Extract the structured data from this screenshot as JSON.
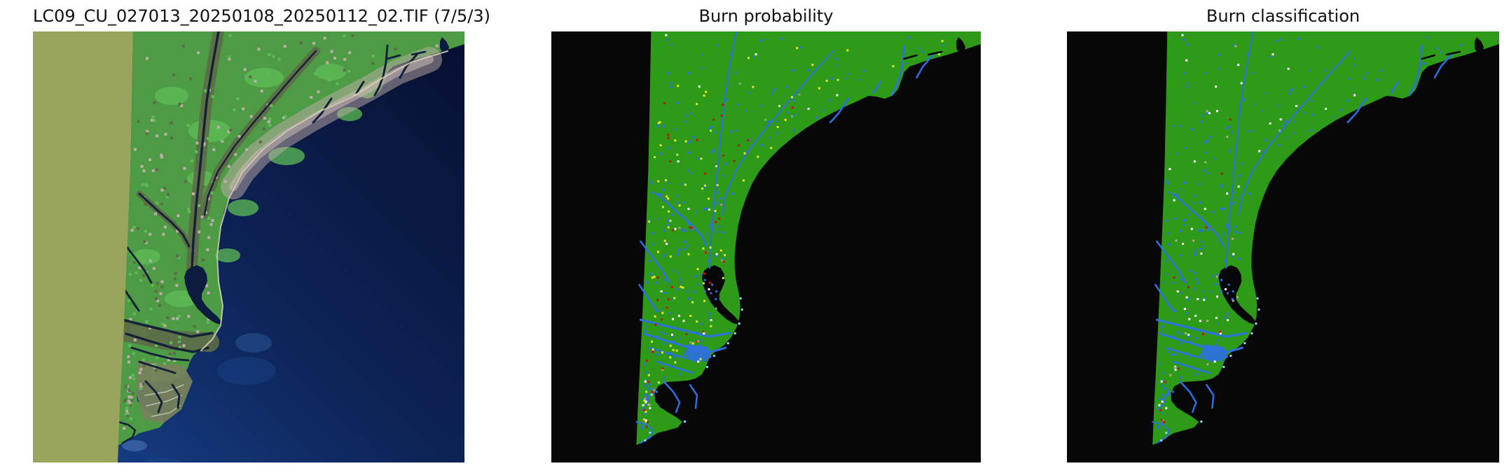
{
  "figure": {
    "background": "#ffffff",
    "panels": [
      {
        "id": "satellite",
        "title": "LC09_CU_027013_20250108_20250112_02.TIF (7/5/3)",
        "type": "satellite-false-color"
      },
      {
        "id": "probability",
        "title": "Burn probability",
        "type": "classified-raster"
      },
      {
        "id": "classification",
        "title": "Burn classification",
        "type": "classified-raster"
      }
    ]
  },
  "colors": {
    "figure_background": "#ffffff",
    "title_text": "#111111",
    "nodata_khaki": "#99a45c",
    "ocean_deep": "#070f30",
    "ocean_mid": "#0d2458",
    "ocean_near": "#17428c",
    "land_green": "#4e9b46",
    "land_green_bright": "#5ebc55",
    "urban_pink": "#bfaea8",
    "urban_pink_light": "#ccbcb6",
    "wetland_olive": "#5d6b47",
    "marsh_gray_green": "#76825c",
    "marsh_vein": "#cdd2c0",
    "river_dark": "#142238",
    "estuary_navy": "#0c1c3e",
    "sand": "#d9d2b5",
    "plume_blue": "#2f5f9f",
    "raster_background": "#070707",
    "raster_green": "#2d9b17",
    "raster_blue": "#2f6fe0",
    "raster_cyan": "#8fd4f0",
    "raster_yellow": "#e6e632",
    "raster_red": "#cc1212",
    "raster_white": "#ffffff",
    "raster_gray": "#9a9a8c",
    "raster_tan": "#b8a488"
  },
  "speckles": {
    "probability": [
      [
        "raster_blue",
        230
      ],
      [
        "raster_yellow",
        95
      ],
      [
        "raster_red",
        42
      ],
      [
        "raster_white",
        26
      ],
      [
        "raster_gray",
        14
      ]
    ],
    "classification": [
      [
        "raster_blue",
        230
      ],
      [
        "raster_white",
        48
      ],
      [
        "raster_red",
        12
      ],
      [
        "raster_tan",
        16
      ]
    ],
    "satellite": [
      [
        "urban_pink",
        120
      ],
      [
        "land_green_bright",
        80
      ],
      [
        "wetland_olive",
        70
      ]
    ]
  },
  "chart_data": [
    {
      "type": "heatmap",
      "title": "LC09_CU_027013_20250108_20250112_02.TIF (7/5/3)",
      "description": "Landsat 9 ARD false-color composite (bands 7/5/3): olive no-data band on the left edge, vegetated coastal land with dark river corridors and pink-gray urban strip, deep navy ocean forming a large arc-shaped coastline with an estuary lagoon",
      "palette": [
        "#99a45c",
        "#4e9b46",
        "#bfaea8",
        "#142238",
        "#0d2458"
      ]
    },
    {
      "type": "heatmap",
      "title": "Burn probability",
      "description": "Classified raster over the same scene: black background/ocean, green valid-data swath, blue water channels, scattered yellow, red, white and gray pixels",
      "palette": [
        "#070707",
        "#2d9b17",
        "#2f6fe0",
        "#e6e632",
        "#cc1212",
        "#ffffff",
        "#9a9a8c"
      ]
    },
    {
      "type": "heatmap",
      "title": "Burn classification",
      "description": "Classified raster over the same scene: black background/ocean, green valid-data swath, blue water channels, scattered white, red and tan pixels (no yellow)",
      "palette": [
        "#070707",
        "#2d9b17",
        "#2f6fe0",
        "#ffffff",
        "#cc1212",
        "#b8a488"
      ]
    }
  ]
}
